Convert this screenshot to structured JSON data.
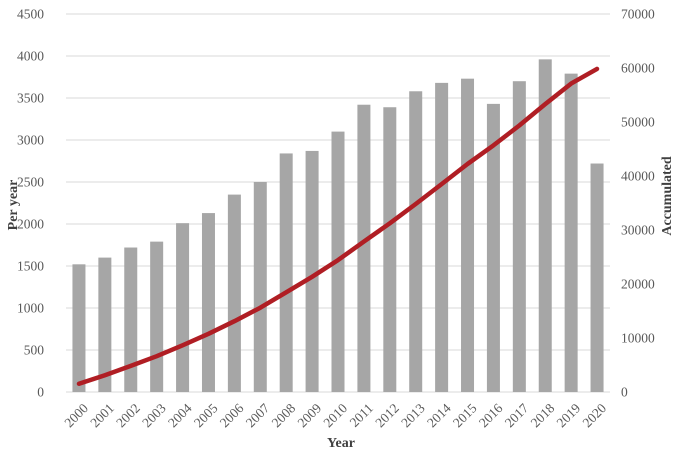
{
  "chart_data": {
    "type": "bar-line",
    "title": "",
    "xlabel": "Year",
    "ylabel_left": "Per year",
    "ylabel_right": "Accumulated",
    "categories": [
      "2000",
      "2001",
      "2002",
      "2003",
      "2004",
      "2005",
      "2006",
      "2007",
      "2008",
      "2009",
      "2010",
      "2011",
      "2012",
      "2013",
      "2014",
      "2015",
      "2016",
      "2017",
      "2018",
      "2019",
      "2020"
    ],
    "series": [
      {
        "name": "Per year",
        "type": "bar",
        "axis": "left",
        "values": [
          1520,
          1600,
          1720,
          1790,
          2010,
          2130,
          2350,
          2500,
          2840,
          2870,
          3100,
          3420,
          3390,
          3580,
          3680,
          3730,
          3430,
          3700,
          3960,
          3790,
          2720
        ]
      },
      {
        "name": "Accumulated",
        "type": "line",
        "axis": "right",
        "values": [
          1520,
          3120,
          4840,
          6630,
          8640,
          10770,
          13120,
          15620,
          18460,
          21330,
          24430,
          27850,
          31240,
          34820,
          38500,
          42230,
          45660,
          49360,
          53320,
          57110,
          59830
        ]
      }
    ],
    "ylim_left": [
      0,
      4500
    ],
    "ytick_step_left": 500,
    "yticks_left": [
      "0",
      "500",
      "1000",
      "1500",
      "2000",
      "2500",
      "3000",
      "3500",
      "4000",
      "4500"
    ],
    "ylim_right": [
      0,
      70000
    ],
    "ytick_step_right": 10000,
    "yticks_right": [
      "0",
      "10000",
      "20000",
      "30000",
      "40000",
      "50000",
      "60000",
      "70000"
    ],
    "grid": true,
    "legend": "none",
    "colors": {
      "bar": "#a6a6a6",
      "line": "#b01e24",
      "grid": "#d9d9d9",
      "tick_text": "#595959",
      "title_text": "#404040",
      "background": "#ffffff"
    }
  }
}
